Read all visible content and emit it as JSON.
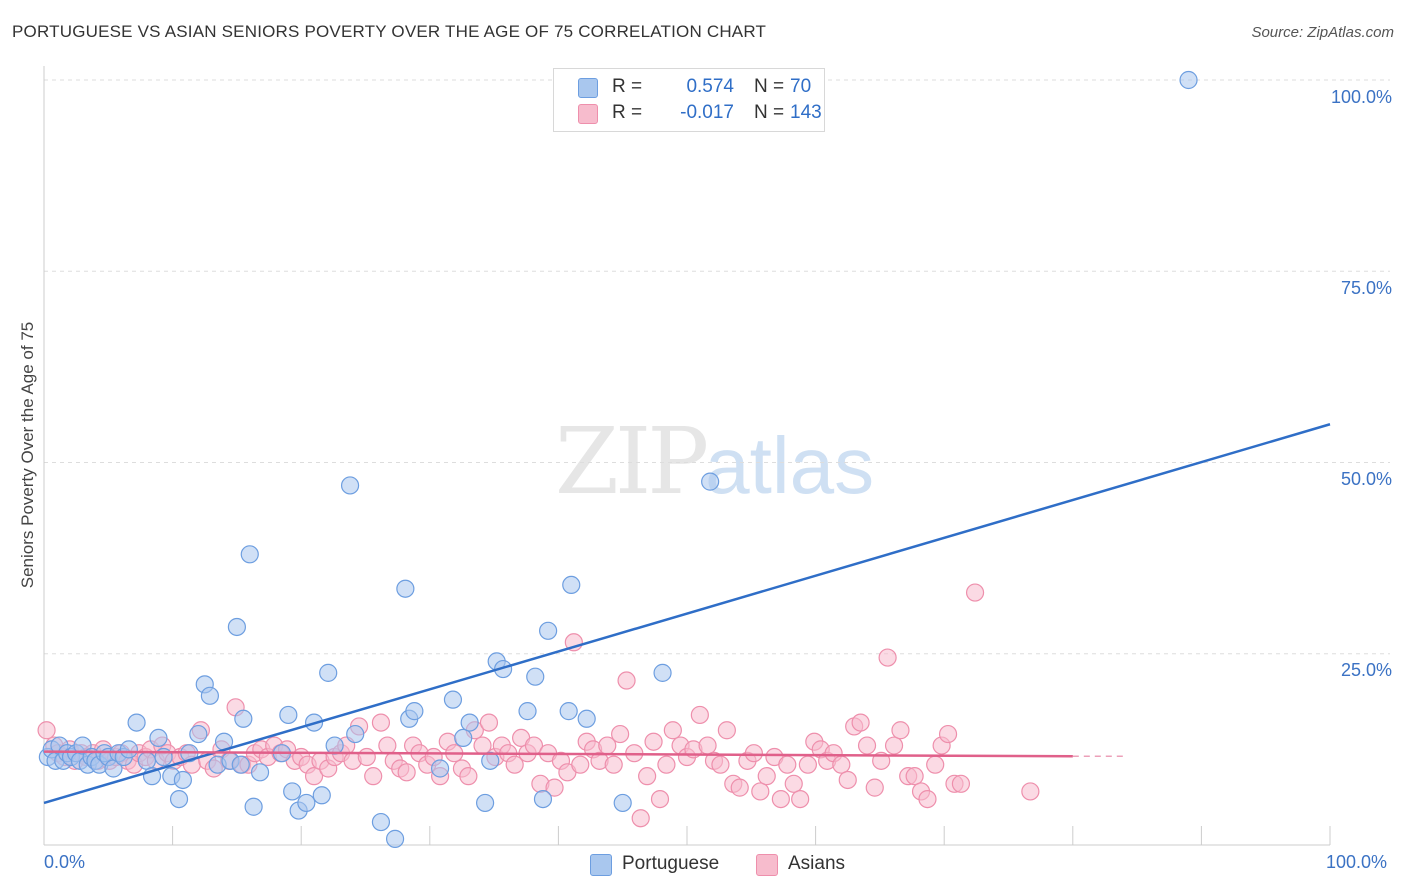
{
  "title": "PORTUGUESE VS ASIAN SENIORS POVERTY OVER THE AGE OF 75 CORRELATION CHART",
  "source": "Source: ZipAtlas.com",
  "legend": {
    "r_label": "R =",
    "n_label": "N =",
    "portuguese": {
      "r": "0.574",
      "n": "70"
    },
    "asians": {
      "r": "-0.017",
      "n": "143"
    }
  },
  "bottom_legend": {
    "portuguese": "Portuguese",
    "asians": "Asians"
  },
  "watermark": {
    "zip": "ZIP",
    "atlas": "atlas"
  },
  "colors": {
    "portuguese_fill": "#a9c7ee",
    "portuguese_stroke": "#6d9ee0",
    "portuguese_line": "#2f6ec7",
    "asians_fill": "#f7bccd",
    "asians_stroke": "#ee8fac",
    "asians_line": "#e0608a",
    "tick_text": "#3b72c4",
    "grid": "#dddddd"
  },
  "chart_data": {
    "type": "scatter",
    "title": "PORTUGUESE VS ASIAN SENIORS POVERTY OVER THE AGE OF 75 CORRELATION CHART",
    "xlabel": "",
    "ylabel": "Seniors Poverty Over the Age of 75",
    "xlim": [
      0,
      100
    ],
    "ylim": [
      0,
      100
    ],
    "x_tick_labels": [
      "0.0%",
      "100.0%"
    ],
    "y_ticks": [
      {
        "value": 25,
        "label": "25.0%"
      },
      {
        "value": 50,
        "label": "50.0%"
      },
      {
        "value": 75,
        "label": "75.0%"
      },
      {
        "value": 100,
        "label": "100.0%"
      }
    ],
    "grid": "horizontal dashed",
    "series": [
      {
        "name": "Portuguese",
        "trend": {
          "x": [
            0,
            100
          ],
          "y": [
            5.5,
            55
          ]
        },
        "points": [
          [
            0.3,
            11.5
          ],
          [
            0.6,
            12.5
          ],
          [
            0.9,
            11
          ],
          [
            1.2,
            13
          ],
          [
            1.5,
            11
          ],
          [
            1.8,
            12
          ],
          [
            2.1,
            11.5
          ],
          [
            2.5,
            12
          ],
          [
            2.8,
            11
          ],
          [
            3,
            13
          ],
          [
            3.4,
            10.5
          ],
          [
            3.7,
            11.5
          ],
          [
            4,
            11
          ],
          [
            4.3,
            10.5
          ],
          [
            4.7,
            12
          ],
          [
            5,
            11.5
          ],
          [
            5.4,
            10
          ],
          [
            5.8,
            12
          ],
          [
            6.2,
            11.5
          ],
          [
            6.6,
            12.5
          ],
          [
            7.2,
            16
          ],
          [
            8,
            11
          ],
          [
            8.4,
            9
          ],
          [
            8.9,
            14
          ],
          [
            9.3,
            11.5
          ],
          [
            9.9,
            9
          ],
          [
            10.5,
            6
          ],
          [
            10.8,
            8.5
          ],
          [
            11.3,
            12
          ],
          [
            12,
            14.5
          ],
          [
            12.5,
            21
          ],
          [
            12.9,
            19.5
          ],
          [
            13.5,
            10.5
          ],
          [
            14,
            13.5
          ],
          [
            14.5,
            11
          ],
          [
            15,
            28.5
          ],
          [
            15.3,
            10.5
          ],
          [
            15.5,
            16.5
          ],
          [
            16,
            38
          ],
          [
            16.3,
            5
          ],
          [
            16.8,
            9.5
          ],
          [
            18.5,
            12
          ],
          [
            19,
            17
          ],
          [
            19.3,
            7
          ],
          [
            19.8,
            4.5
          ],
          [
            20.4,
            5.5
          ],
          [
            21,
            16
          ],
          [
            21.6,
            6.5
          ],
          [
            22.1,
            22.5
          ],
          [
            22.6,
            13
          ],
          [
            23.8,
            47
          ],
          [
            24.2,
            14.5
          ],
          [
            26.2,
            3
          ],
          [
            27.3,
            0.8
          ],
          [
            28.4,
            16.5
          ],
          [
            28.8,
            17.5
          ],
          [
            28.1,
            33.5
          ],
          [
            30.8,
            10
          ],
          [
            31.8,
            19
          ],
          [
            32.6,
            14
          ],
          [
            33.1,
            16
          ],
          [
            34.3,
            5.5
          ],
          [
            34.7,
            11
          ],
          [
            35.2,
            24
          ],
          [
            35.7,
            23
          ],
          [
            37.6,
            17.5
          ],
          [
            38.2,
            22
          ],
          [
            38.8,
            6
          ],
          [
            39.2,
            28
          ],
          [
            40.8,
            17.5
          ],
          [
            41,
            34
          ],
          [
            42.2,
            16.5
          ],
          [
            45,
            5.5
          ],
          [
            48.1,
            22.5
          ],
          [
            51.8,
            47.5
          ],
          [
            89,
            100
          ]
        ]
      },
      {
        "name": "Asians",
        "trend": {
          "x": [
            0,
            80
          ],
          "y": [
            12.2,
            11.6
          ]
        },
        "trend_dashed": {
          "x": [
            80,
            84
          ],
          "y": [
            11.6,
            11.6
          ]
        },
        "points": [
          [
            0.2,
            15
          ],
          [
            0.8,
            13
          ],
          [
            1.1,
            12
          ],
          [
            1.6,
            11.5
          ],
          [
            2,
            12.5
          ],
          [
            2.4,
            11
          ],
          [
            2.9,
            12
          ],
          [
            3.3,
            11.5
          ],
          [
            3.8,
            12
          ],
          [
            4.2,
            11
          ],
          [
            4.6,
            12.5
          ],
          [
            5.1,
            11
          ],
          [
            5.6,
            11.5
          ],
          [
            6,
            12
          ],
          [
            6.5,
            11
          ],
          [
            7,
            10.5
          ],
          [
            7.4,
            12
          ],
          [
            7.9,
            11.5
          ],
          [
            8.3,
            12.5
          ],
          [
            8.7,
            11
          ],
          [
            9.2,
            13
          ],
          [
            9.6,
            12
          ],
          [
            10.1,
            11
          ],
          [
            10.6,
            11.5
          ],
          [
            11.1,
            12
          ],
          [
            11.5,
            10.5
          ],
          [
            12.2,
            15
          ],
          [
            12.7,
            11
          ],
          [
            13.2,
            10
          ],
          [
            13.8,
            12.5
          ],
          [
            14.4,
            11
          ],
          [
            14.9,
            18
          ],
          [
            15.4,
            10.5
          ],
          [
            15.9,
            10.5
          ],
          [
            16.4,
            12
          ],
          [
            16.9,
            12.5
          ],
          [
            17.4,
            11.5
          ],
          [
            17.9,
            13
          ],
          [
            18.4,
            12
          ],
          [
            18.9,
            12.5
          ],
          [
            19.5,
            11
          ],
          [
            20,
            11.5
          ],
          [
            20.5,
            10.5
          ],
          [
            21,
            9
          ],
          [
            21.5,
            11
          ],
          [
            22.1,
            10
          ],
          [
            22.6,
            11.5
          ],
          [
            23.1,
            12
          ],
          [
            23.5,
            13
          ],
          [
            24,
            11
          ],
          [
            24.5,
            15.5
          ],
          [
            25.1,
            11.5
          ],
          [
            25.6,
            9
          ],
          [
            26.2,
            16
          ],
          [
            26.7,
            13
          ],
          [
            27.2,
            11
          ],
          [
            27.7,
            10
          ],
          [
            28.2,
            9.5
          ],
          [
            28.7,
            13
          ],
          [
            29.2,
            12
          ],
          [
            29.8,
            10.5
          ],
          [
            30.3,
            11.5
          ],
          [
            30.8,
            9
          ],
          [
            31.4,
            13.5
          ],
          [
            31.9,
            12
          ],
          [
            32.5,
            10
          ],
          [
            33,
            9
          ],
          [
            33.5,
            15
          ],
          [
            34.1,
            13
          ],
          [
            34.6,
            16
          ],
          [
            35.1,
            11.5
          ],
          [
            35.6,
            13
          ],
          [
            36.1,
            12
          ],
          [
            36.6,
            10.5
          ],
          [
            37.1,
            14
          ],
          [
            37.6,
            12
          ],
          [
            38.1,
            13
          ],
          [
            38.6,
            8
          ],
          [
            39.2,
            12
          ],
          [
            39.7,
            7.5
          ],
          [
            40.2,
            11
          ],
          [
            40.7,
            9.5
          ],
          [
            41.2,
            26.5
          ],
          [
            41.7,
            10.5
          ],
          [
            42.2,
            13.5
          ],
          [
            42.7,
            12.5
          ],
          [
            43.2,
            11
          ],
          [
            43.8,
            13
          ],
          [
            44.3,
            10.5
          ],
          [
            44.8,
            14.5
          ],
          [
            45.3,
            21.5
          ],
          [
            45.9,
            12
          ],
          [
            46.4,
            3.5
          ],
          [
            46.9,
            9
          ],
          [
            47.4,
            13.5
          ],
          [
            47.9,
            6
          ],
          [
            48.4,
            10.5
          ],
          [
            48.9,
            15
          ],
          [
            49.5,
            13
          ],
          [
            50,
            11.5
          ],
          [
            50.5,
            12.5
          ],
          [
            51,
            17
          ],
          [
            51.6,
            13
          ],
          [
            52.1,
            11
          ],
          [
            52.6,
            10.5
          ],
          [
            53.1,
            15
          ],
          [
            53.6,
            8
          ],
          [
            54.1,
            7.5
          ],
          [
            54.7,
            11
          ],
          [
            55.2,
            12
          ],
          [
            55.7,
            7
          ],
          [
            56.2,
            9
          ],
          [
            56.8,
            11.5
          ],
          [
            57.3,
            6
          ],
          [
            57.8,
            10.5
          ],
          [
            58.3,
            8
          ],
          [
            58.8,
            6
          ],
          [
            59.4,
            10.5
          ],
          [
            59.9,
            13.5
          ],
          [
            60.4,
            12.5
          ],
          [
            60.9,
            11
          ],
          [
            61.4,
            12
          ],
          [
            62,
            10.5
          ],
          [
            62.5,
            8.5
          ],
          [
            63,
            15.5
          ],
          [
            63.5,
            16
          ],
          [
            64,
            13
          ],
          [
            64.6,
            7.5
          ],
          [
            65.1,
            11
          ],
          [
            65.6,
            24.5
          ],
          [
            66.1,
            13
          ],
          [
            66.6,
            15
          ],
          [
            67.2,
            9
          ],
          [
            67.7,
            9
          ],
          [
            68.2,
            7
          ],
          [
            68.7,
            6
          ],
          [
            69.3,
            10.5
          ],
          [
            69.8,
            13
          ],
          [
            70.3,
            14.5
          ],
          [
            70.8,
            8
          ],
          [
            71.3,
            8
          ],
          [
            72.4,
            33
          ],
          [
            76.7,
            7
          ]
        ]
      }
    ]
  }
}
